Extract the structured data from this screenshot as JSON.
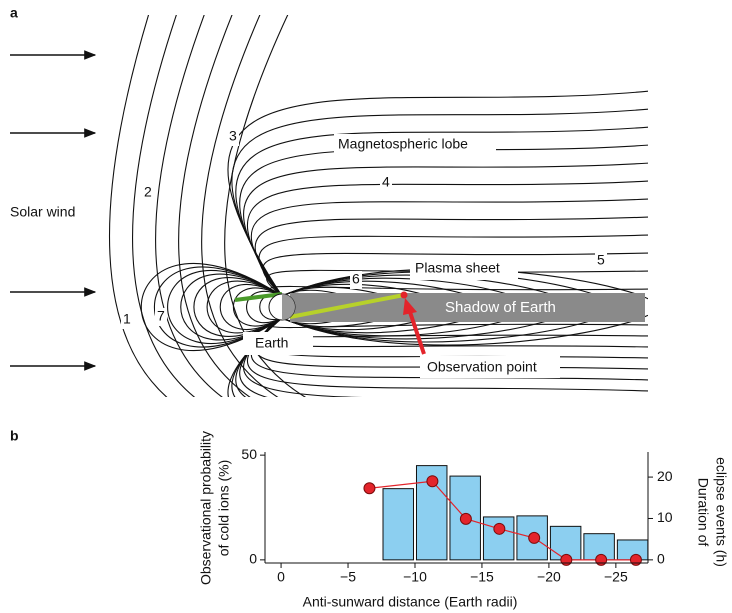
{
  "panel_a": {
    "label": "a",
    "solar_wind": "Solar wind",
    "lobe": "Magnetospheric lobe",
    "plasma_sheet": "Plasma sheet",
    "shadow": "Shadow of Earth",
    "earth": "Earth",
    "observation": "Observation point",
    "line_numbers": [
      "1",
      "2",
      "3",
      "4",
      "5",
      "6",
      "7"
    ]
  },
  "chart_data": {
    "type": "histogram",
    "panel_label": "b",
    "bins": [
      -7.5,
      -10,
      -12.5,
      -15,
      -17.5,
      -20,
      -22.5,
      -25,
      -27.5
    ],
    "values": [
      34,
      45,
      40,
      20.5,
      21,
      16,
      12.5,
      9.5
    ],
    "color": "#8ccff0",
    "series": [
      {
        "type": "line",
        "axis": "y2",
        "color": "#e3242b",
        "x": [
          -6.6,
          -11.3,
          -13.8,
          -16.3,
          -18.9,
          -21.3,
          -23.9,
          -26.5
        ],
        "values": [
          17.3,
          19,
          9.9,
          7.5,
          5.3,
          0,
          0,
          0
        ]
      }
    ],
    "xlim": [
      1.2,
      -27.4
    ],
    "xticks": [
      0,
      {
        "value": -5,
        "label": "−5"
      },
      {
        "value": -10,
        "label": "−10"
      },
      {
        "value": -15,
        "label": "−15"
      },
      {
        "value": -20,
        "label": "−20"
      },
      {
        "value": -25,
        "label": "−25"
      }
    ],
    "ylim": [
      -1.5,
      51.5
    ],
    "yticks": [
      0,
      50
    ],
    "y2lim": [
      -0.76,
      26.06
    ],
    "y2ticks": [
      0,
      10,
      20
    ],
    "xlabel": "Anti-sunward distance (Earth radii)",
    "ylabel": [
      "Observational probability",
      "of cold ions (%)"
    ],
    "y2label": [
      "Duration of",
      "eclipse events (h)"
    ]
  }
}
